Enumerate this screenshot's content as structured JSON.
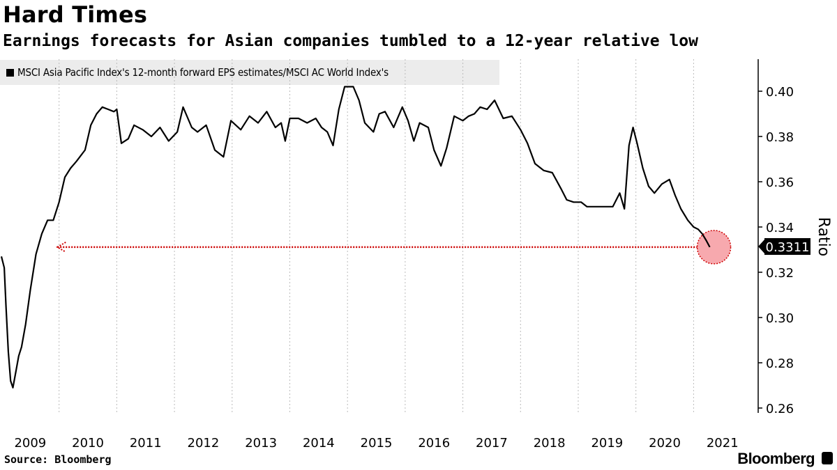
{
  "header": {
    "title": "Hard Times",
    "subtitle": "Earnings forecasts for Asian companies tumbled to a 12-year relative low"
  },
  "legend": {
    "label": "MSCI Asia Pacific Index's 12-month forward EPS estimates/MSCI AC World Index's"
  },
  "footer": {
    "source": "Source: Bloomberg",
    "brand": "Bloomberg"
  },
  "colors": {
    "line": "#000000",
    "annotation": "#cc0000",
    "highlight_fill": "#f7a9ae",
    "legend_bg": "#ececec"
  },
  "chart_data": {
    "type": "line",
    "title": "Hard Times",
    "subtitle": "Earnings forecasts for Asian companies tumbled to a 12-year relative low",
    "ylabel": "Ratio",
    "xlabel": "",
    "ylim": [
      0.255,
      0.415
    ],
    "xlim": [
      2009.0,
      2022.0
    ],
    "y_ticks": [
      "0.26",
      "0.28",
      "0.30",
      "0.32",
      "0.34",
      "0.36",
      "0.38",
      "0.40"
    ],
    "x_ticks": [
      "2009",
      "2010",
      "2011",
      "2012",
      "2013",
      "2014",
      "2015",
      "2016",
      "2017",
      "2018",
      "2019",
      "2020",
      "2021"
    ],
    "grid": "vertical-dotted",
    "last_value_label": "0.3311",
    "annotation": "dotted arrow marking the current level back to 2009",
    "series": [
      {
        "name": "MSCI Asia Pacific Index's 12-month forward EPS estimates/MSCI AC World Index's",
        "x": [
          2009.0,
          2009.05,
          2009.08,
          2009.12,
          2009.16,
          2009.2,
          2009.25,
          2009.3,
          2009.35,
          2009.42,
          2009.5,
          2009.6,
          2009.7,
          2009.8,
          2009.9,
          2010.0,
          2010.1,
          2010.2,
          2010.3,
          2010.45,
          2010.55,
          2010.65,
          2010.75,
          2010.85,
          2010.95,
          2011.0,
          2011.08,
          2011.2,
          2011.3,
          2011.45,
          2011.6,
          2011.75,
          2011.9,
          2012.05,
          2012.15,
          2012.3,
          2012.4,
          2012.55,
          2012.7,
          2012.85,
          2012.98,
          2013.15,
          2013.3,
          2013.45,
          2013.6,
          2013.75,
          2013.85,
          2013.92,
          2014.0,
          2014.15,
          2014.3,
          2014.45,
          2014.55,
          2014.65,
          2014.75,
          2014.85,
          2014.95,
          2015.1,
          2015.2,
          2015.3,
          2015.45,
          2015.55,
          2015.65,
          2015.8,
          2015.95,
          2016.05,
          2016.15,
          2016.25,
          2016.4,
          2016.5,
          2016.62,
          2016.72,
          2016.85,
          2017.0,
          2017.1,
          2017.2,
          2017.3,
          2017.42,
          2017.55,
          2017.7,
          2017.85,
          2018.0,
          2018.12,
          2018.25,
          2018.4,
          2018.55,
          2018.7,
          2018.8,
          2018.92,
          2019.05,
          2019.15,
          2019.3,
          2019.45,
          2019.6,
          2019.72,
          2019.8,
          2019.88,
          2019.95,
          2020.02,
          2020.12,
          2020.22,
          2020.32,
          2020.45,
          2020.58,
          2020.68,
          2020.78,
          2020.9,
          2021.0,
          2021.08,
          2021.15,
          2021.22,
          2021.28
        ],
        "values": [
          0.327,
          0.322,
          0.305,
          0.285,
          0.272,
          0.269,
          0.276,
          0.283,
          0.287,
          0.297,
          0.312,
          0.328,
          0.337,
          0.343,
          0.343,
          0.351,
          0.362,
          0.366,
          0.369,
          0.374,
          0.385,
          0.39,
          0.393,
          0.392,
          0.391,
          0.392,
          0.377,
          0.379,
          0.385,
          0.383,
          0.38,
          0.384,
          0.378,
          0.382,
          0.393,
          0.384,
          0.382,
          0.385,
          0.374,
          0.371,
          0.387,
          0.383,
          0.389,
          0.386,
          0.391,
          0.384,
          0.386,
          0.378,
          0.388,
          0.388,
          0.386,
          0.388,
          0.384,
          0.382,
          0.376,
          0.392,
          0.402,
          0.402,
          0.396,
          0.386,
          0.382,
          0.39,
          0.391,
          0.384,
          0.393,
          0.387,
          0.378,
          0.386,
          0.384,
          0.374,
          0.367,
          0.375,
          0.389,
          0.387,
          0.389,
          0.39,
          0.393,
          0.392,
          0.396,
          0.388,
          0.389,
          0.383,
          0.377,
          0.368,
          0.365,
          0.364,
          0.357,
          0.352,
          0.351,
          0.351,
          0.349,
          0.349,
          0.349,
          0.349,
          0.355,
          0.348,
          0.376,
          0.384,
          0.377,
          0.366,
          0.358,
          0.355,
          0.359,
          0.361,
          0.354,
          0.348,
          0.343,
          0.34,
          0.339,
          0.337,
          0.334,
          0.3311
        ]
      }
    ]
  }
}
